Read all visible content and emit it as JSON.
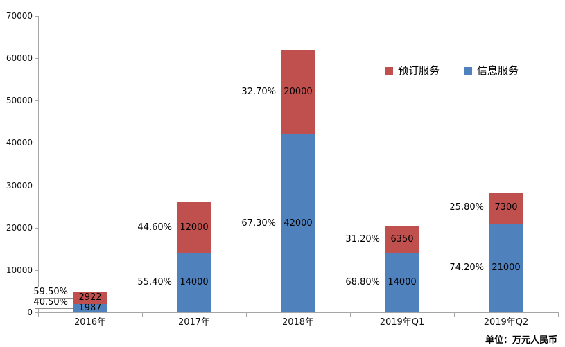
{
  "chart_data": {
    "type": "stacked-bar",
    "title": "",
    "categories": [
      "2016年",
      "2017年",
      "2018年",
      "2019年Q1",
      "2019年Q2"
    ],
    "series": [
      {
        "name": "信息服务",
        "color": "#4F81BD",
        "values": [
          1987,
          14000,
          42000,
          14000,
          21000
        ],
        "percent_labels": [
          "40.50%",
          "55.40%",
          "67.30%",
          "68.80%",
          "74.20%"
        ]
      },
      {
        "name": "预订服务",
        "color": "#C0504D",
        "values": [
          2922,
          12000,
          20000,
          6350,
          7300
        ],
        "percent_labels": [
          "59.50%",
          "44.60%",
          "32.70%",
          "31.20%",
          "25.80%"
        ]
      }
    ],
    "legend_order": [
      "预订服务",
      "信息服务"
    ],
    "legend_position": "upper-right-inside",
    "ylim": [
      0,
      70000
    ],
    "ytick_step": 10000,
    "ytick_labels": [
      "0",
      "10000",
      "20000",
      "30000",
      "40000",
      "50000",
      "60000",
      "70000"
    ],
    "grid": false,
    "unit_note": "单位：万元人民币",
    "colors": {
      "axis": "#a6a6a6",
      "leader_line": "#8c8c8c",
      "text": "#000000"
    }
  }
}
